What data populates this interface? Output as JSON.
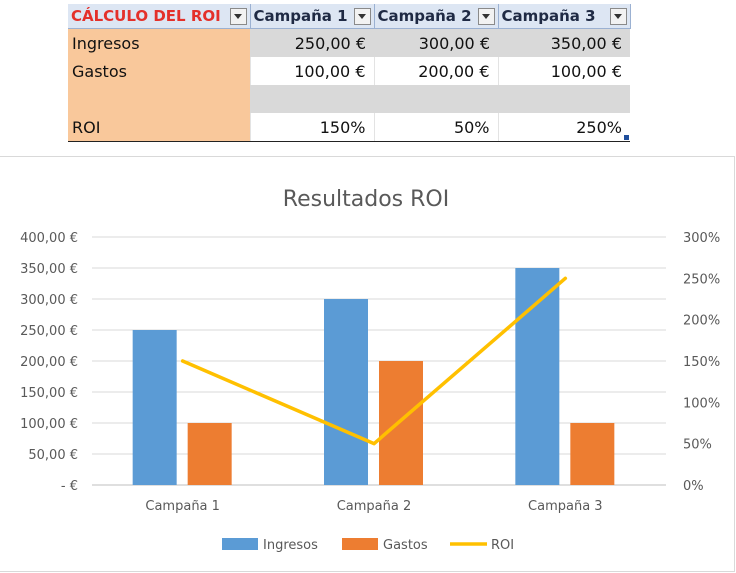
{
  "table": {
    "header": [
      "CÁLCULO DEL ROI",
      "Campaña 1",
      "Campaña 2",
      "Campaña 3"
    ],
    "rows": [
      {
        "label": "Ingresos",
        "values": [
          "250,00 €",
          "300,00 €",
          "350,00 €"
        ]
      },
      {
        "label": "Gastos",
        "values": [
          "100,00 €",
          "200,00 €",
          "100,00 €"
        ]
      },
      {
        "label": "",
        "values": [
          "",
          "",
          ""
        ]
      },
      {
        "label": "ROI",
        "values": [
          "150%",
          "50%",
          "250%"
        ]
      }
    ]
  },
  "colors": {
    "ingresos": "#5b9bd5",
    "gastos": "#ed7d31",
    "roi": "#ffc000",
    "header_title": "#e4302a",
    "label_fill": "#f9c89b"
  },
  "chart_data": {
    "type": "bar",
    "title": "Resultados ROI",
    "categories": [
      "Campaña 1",
      "Campaña 2",
      "Campaña 3"
    ],
    "series": [
      {
        "name": "Ingresos",
        "kind": "bar",
        "axis": "left",
        "values": [
          250,
          300,
          350
        ]
      },
      {
        "name": "Gastos",
        "kind": "bar",
        "axis": "left",
        "values": [
          100,
          200,
          100
        ]
      },
      {
        "name": "ROI",
        "kind": "line",
        "axis": "right",
        "values": [
          150,
          50,
          250
        ]
      }
    ],
    "ylim": [
      0,
      400
    ],
    "y2lim": [
      0,
      300
    ],
    "left_ticks": [
      0,
      50,
      100,
      150,
      200,
      250,
      300,
      350,
      400
    ],
    "left_tick_labels": [
      "-  €",
      "50,00 €",
      "100,00 €",
      "150,00 €",
      "200,00 €",
      "250,00 €",
      "300,00 €",
      "350,00 €",
      "400,00 €"
    ],
    "right_ticks": [
      0,
      50,
      100,
      150,
      200,
      250,
      300
    ],
    "right_tick_labels": [
      "0%",
      "50%",
      "100%",
      "150%",
      "200%",
      "250%",
      "300%"
    ],
    "grid": true,
    "legend": "bottom"
  }
}
